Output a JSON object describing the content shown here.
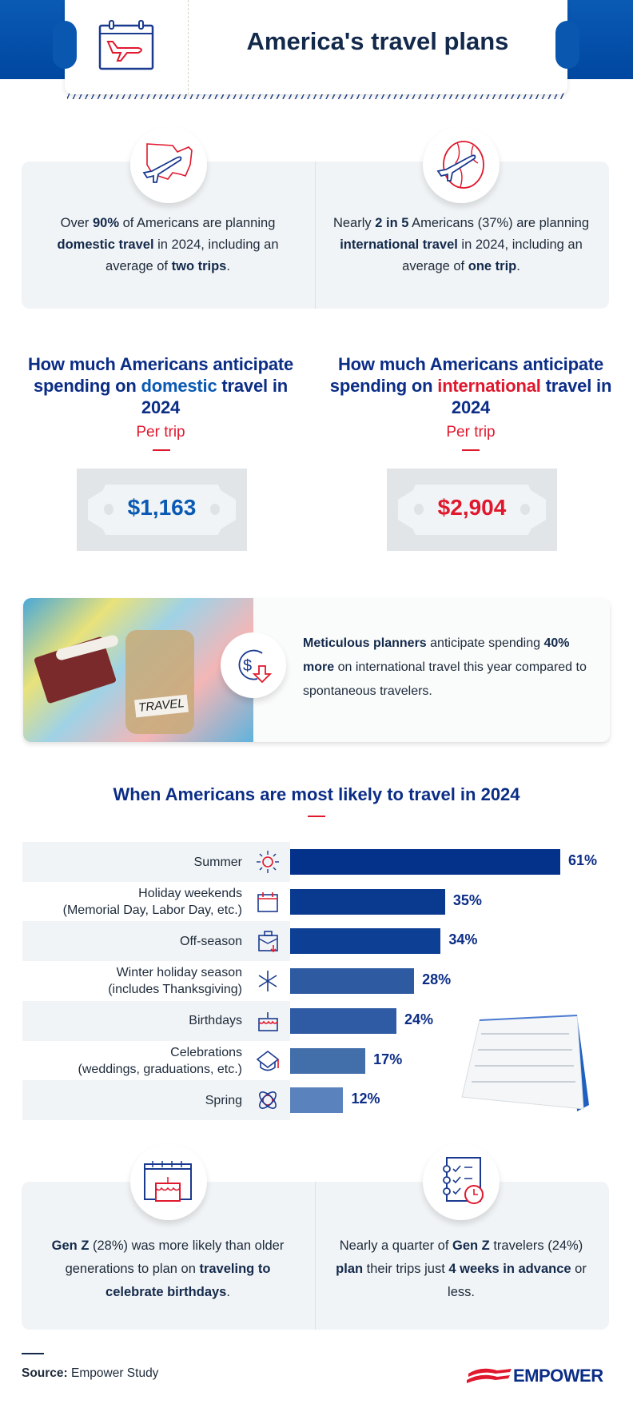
{
  "header": {
    "title": "America's travel plans",
    "icon": "calendar-airplane-icon"
  },
  "stats": [
    {
      "icon": "usa-map-airplane-icon",
      "parts": [
        "Over ",
        "90%",
        " of Americans are planning ",
        "domestic travel",
        " in 2024, including an average of ",
        "two trips",
        "."
      ]
    },
    {
      "icon": "globe-airplane-icon",
      "parts": [
        "Nearly ",
        "2 in 5",
        " Americans (37%) are planning ",
        "international travel",
        " in 2024, including an average of ",
        "one trip",
        "."
      ]
    }
  ],
  "spending": [
    {
      "heading_pre": "How much Americans anticipate spending on ",
      "heading_em": "domestic",
      "heading_post": " travel in 2024",
      "sub": "Per trip",
      "value": "$1,163",
      "color": "#0a5ab4"
    },
    {
      "heading_pre": "How much Americans anticipate spending on ",
      "heading_em": "international",
      "heading_post": " travel in 2024",
      "sub": "Per trip",
      "value": "$2,904",
      "color": "#e0182d"
    }
  ],
  "planners": {
    "icon": "dollar-down-arrow-icon",
    "parts": [
      "Meticulous planners",
      " anticipate spending ",
      "40% more",
      " on international travel this year compared to spontaneous travelers."
    ],
    "photo_label": "TRAVEL"
  },
  "chart_data": {
    "type": "bar",
    "orientation": "horizontal",
    "title": "When Americans are most likely to travel in 2024",
    "categories": [
      "Summer",
      "Holiday weekends\n(Memorial Day, Labor Day, etc.)",
      "Off-season",
      "Winter holiday season\n(includes Thanksgiving)",
      "Birthdays",
      "Celebrations\n(weddings, graduations, etc.)",
      "Spring"
    ],
    "icons": [
      "sun-icon",
      "calendar-icon",
      "briefcase-icon",
      "snowflake-icon",
      "cake-icon",
      "graduation-cap-icon",
      "flower-icon"
    ],
    "values": [
      61,
      35,
      34,
      28,
      24,
      17,
      12
    ],
    "value_labels": [
      "61%",
      "35%",
      "34%",
      "28%",
      "24%",
      "17%",
      "12%"
    ],
    "colors": [
      "#04318a",
      "#0a3a90",
      "#0d3f95",
      "#2e5aa2",
      "#2f5ba4",
      "#426ea9",
      "#5a82bd"
    ],
    "unit": "%"
  },
  "genz": [
    {
      "icon": "birthday-calendar-icon",
      "parts": [
        "Gen Z",
        " (28%) was more likely than older generations to plan on ",
        "traveling to celebrate birthdays",
        "."
      ]
    },
    {
      "icon": "checklist-clock-icon",
      "parts": [
        "Nearly a quarter of ",
        "Gen Z",
        " travelers (24%) ",
        "plan",
        " their trips just ",
        "4 weeks in advance",
        " or less."
      ]
    }
  ],
  "footer": {
    "source_label": "Source:",
    "source_text": " Empower Study",
    "logo": "EMPOWER"
  },
  "colors": {
    "navy": "#0b2d86",
    "red": "#e0182d",
    "blue": "#0a5ab4",
    "panel": "#f1f4f6"
  }
}
